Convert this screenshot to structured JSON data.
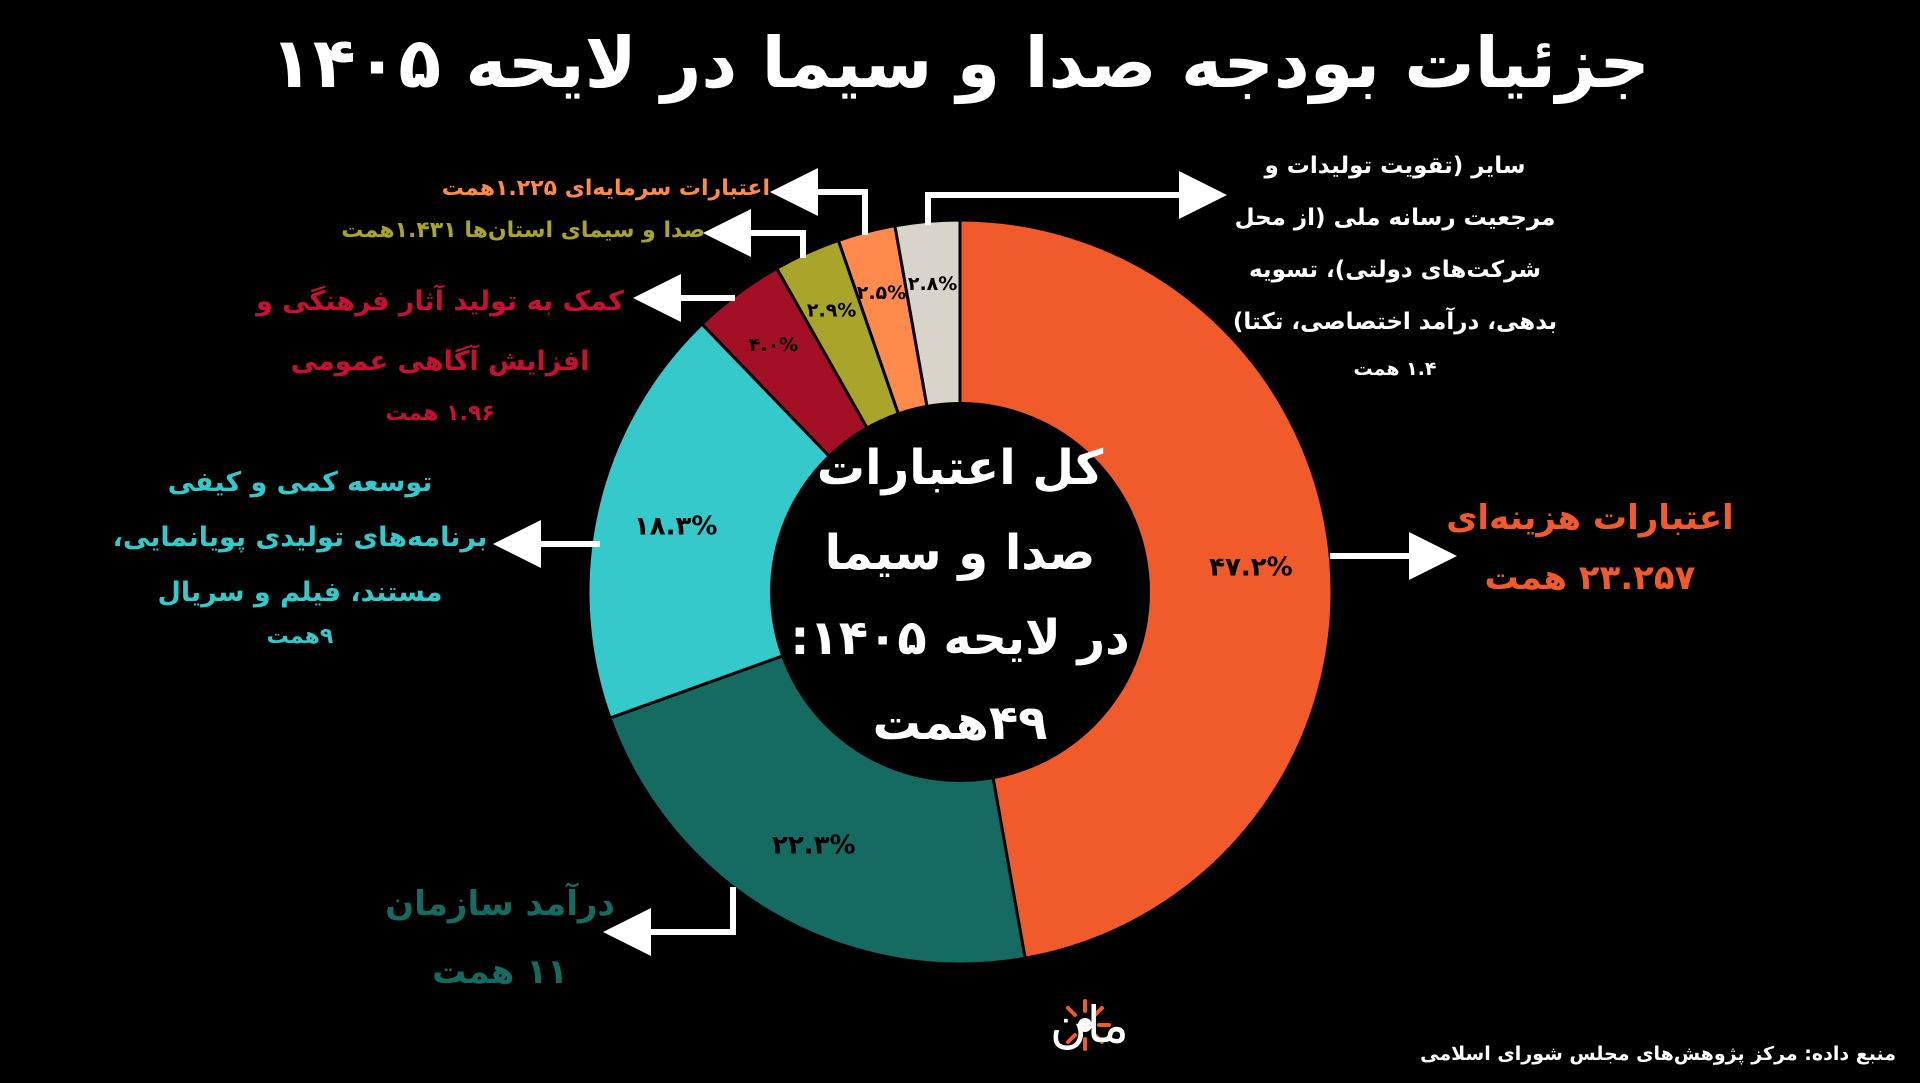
{
  "title": "جزئیات بودجه صدا و سیما در لایحه ۱۴۰۵",
  "center_label": [
    "کل اعتبارات",
    "صدا و سیما",
    "در لایحه ۱۴۰۵:",
    "۴۹همت"
  ],
  "source": "منبع داده:  مرکز پژوهش‌های مجلس شورای اسلامی",
  "logo_text": "زومان",
  "chart_data": {
    "type": "pie",
    "donut": true,
    "start": "top, clockwise",
    "slices": [
      {
        "label_lines": [
          "اعتبارات هزینه‌ای",
          "۲۳.۲۵۷ همت"
        ],
        "value": 47.2,
        "percent_text": "۴۷.۲%",
        "color": "#f15a2b",
        "text_color": "#f15a2b"
      },
      {
        "label_lines": [
          "درآمد سازمان",
          "۱۱ همت"
        ],
        "value": 22.3,
        "percent_text": "۲۲.۳%",
        "color": "#156b61",
        "text_color": "#156b61"
      },
      {
        "label_lines": [
          "توسعه کمی و کیفی",
          "برنامه‌های تولیدی پویانمایی،",
          "مستند، فیلم و سریال",
          "۹همت"
        ],
        "value": 18.3,
        "percent_text": "۱۸.۳%",
        "color": "#36c9cc",
        "text_color": "#36c9cc"
      },
      {
        "label_lines": [
          "کمک به تولید آثار فرهنگی و",
          "افزایش آگاهی عمومی",
          "۱.۹۶ همت"
        ],
        "value": 4.0,
        "percent_text": "۴.۰%",
        "color": "#a30f24",
        "text_color": "#c41230"
      },
      {
        "label_lines": [
          "صدا و سیمای استان‌ها ۱.۴۳۱همت"
        ],
        "value": 2.9,
        "percent_text": "۲.۹%",
        "color": "#a8a52a",
        "text_color": "#a8a52a"
      },
      {
        "label_lines": [
          "اعتبارات سرمایه‌ای ۱.۲۲۵همت"
        ],
        "value": 2.5,
        "percent_text": "۲.۵%",
        "color": "#ff8a4c",
        "text_color": "#ff8a4c"
      },
      {
        "label_lines": [
          "سایر (تقویت تولیدات و",
          "مرجعیت رسانه ملی (از محل",
          "شرکت‌های دولتی)، تسویه",
          "بدهی، درآمد اختصاصی، تکتا)",
          "۱.۴ همت"
        ],
        "value": 2.8,
        "percent_text": "۲.۸%",
        "color": "#d9d4c9",
        "text_color": "#ffffff"
      }
    ]
  }
}
